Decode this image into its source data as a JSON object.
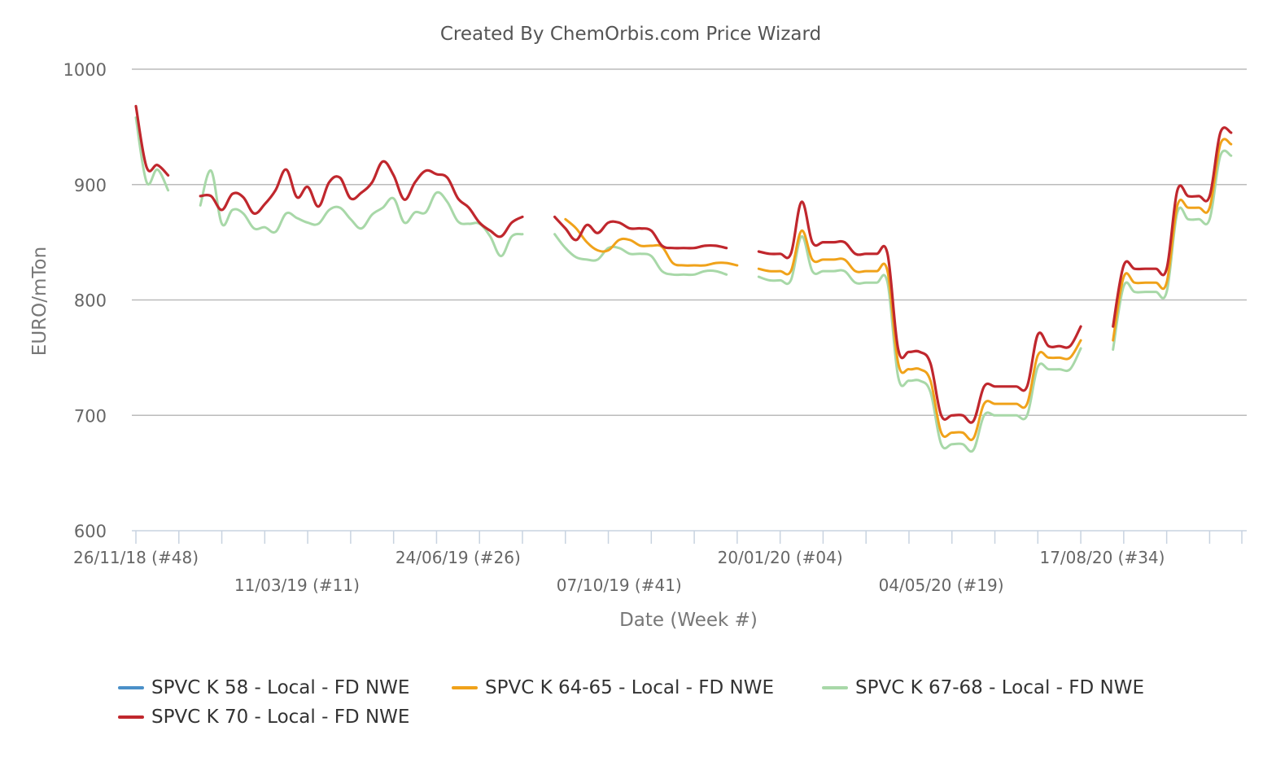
{
  "chart_data": {
    "type": "line",
    "title": "Created By ChemOrbis.com Price Wizard",
    "xlabel": "Date (Week #)",
    "ylabel": "EURO/mTon",
    "ylim": [
      600,
      1000
    ],
    "yticks": [
      600,
      700,
      800,
      900,
      1000
    ],
    "grid": true,
    "legend_position": "bottom",
    "xlim": [
      0,
      103
    ],
    "xtick_labels": [
      {
        "w": 0,
        "label": "26/11/18 (#48)"
      },
      {
        "w": 15,
        "label": "11/03/19 (#11)"
      },
      {
        "w": 30,
        "label": "24/06/19 (#26)"
      },
      {
        "w": 45,
        "label": "07/10/19 (#41)"
      },
      {
        "w": 60,
        "label": "20/01/20 (#04)"
      },
      {
        "w": 75,
        "label": "04/05/20 (#19)"
      },
      {
        "w": 90,
        "label": "17/08/20 (#34)"
      }
    ],
    "series": [
      {
        "name": "SPVC K 58 - Local - FD NWE",
        "color": "#4a90c8",
        "segments": []
      },
      {
        "name": "SPVC K 64-65 - Local - FD NWE",
        "color": "#f0a21a",
        "segments": [
          [
            [
              40,
              870
            ],
            [
              41,
              862
            ],
            [
              42,
              850
            ],
            [
              43,
              843
            ],
            [
              44,
              843
            ],
            [
              45,
              852
            ],
            [
              46,
              852
            ],
            [
              47,
              847
            ],
            [
              48,
              847
            ],
            [
              49,
              846
            ],
            [
              50,
              832
            ],
            [
              51,
              830
            ],
            [
              52,
              830
            ],
            [
              53,
              830
            ],
            [
              54,
              832
            ],
            [
              55,
              832
            ],
            [
              56,
              830
            ]
          ],
          [
            [
              58,
              827
            ],
            [
              59,
              825
            ],
            [
              60,
              825
            ],
            [
              61,
              825
            ],
            [
              62,
              860
            ],
            [
              63,
              835
            ],
            [
              64,
              835
            ],
            [
              65,
              835
            ],
            [
              66,
              835
            ],
            [
              67,
              825
            ],
            [
              68,
              825
            ],
            [
              69,
              825
            ],
            [
              70,
              825
            ],
            [
              71,
              745
            ],
            [
              72,
              740
            ],
            [
              73,
              740
            ],
            [
              74,
              730
            ],
            [
              75,
              685
            ],
            [
              76,
              685
            ],
            [
              77,
              685
            ],
            [
              78,
              680
            ],
            [
              79,
              710
            ],
            [
              80,
              710
            ],
            [
              81,
              710
            ],
            [
              82,
              710
            ],
            [
              83,
              710
            ],
            [
              84,
              752
            ],
            [
              85,
              750
            ],
            [
              86,
              750
            ],
            [
              87,
              750
            ],
            [
              88,
              765
            ]
          ],
          [
            [
              91,
              765
            ],
            [
              92,
              820
            ],
            [
              93,
              815
            ],
            [
              94,
              815
            ],
            [
              95,
              815
            ],
            [
              96,
              815
            ],
            [
              97,
              882
            ],
            [
              98,
              880
            ],
            [
              99,
              880
            ],
            [
              100,
              880
            ],
            [
              101,
              935
            ],
            [
              102,
              935
            ]
          ]
        ]
      },
      {
        "name": "SPVC K 67-68 - Local - FD NWE",
        "color": "#a8d8a8",
        "segments": [
          [
            [
              0,
              958
            ],
            [
              1,
              902
            ],
            [
              2,
              913
            ],
            [
              3,
              895
            ]
          ],
          [
            [
              6,
              882
            ],
            [
              7,
              912
            ],
            [
              8,
              866
            ],
            [
              9,
              878
            ],
            [
              10,
              875
            ],
            [
              11,
              862
            ],
            [
              12,
              863
            ],
            [
              13,
              859
            ],
            [
              14,
              875
            ],
            [
              15,
              871
            ],
            [
              16,
              867
            ],
            [
              17,
              866
            ],
            [
              18,
              878
            ],
            [
              19,
              880
            ],
            [
              20,
              870
            ],
            [
              21,
              862
            ],
            [
              22,
              874
            ],
            [
              23,
              880
            ],
            [
              24,
              888
            ],
            [
              25,
              867
            ],
            [
              26,
              876
            ],
            [
              27,
              876
            ],
            [
              28,
              893
            ],
            [
              29,
              885
            ],
            [
              30,
              868
            ],
            [
              31,
              866
            ],
            [
              32,
              866
            ],
            [
              33,
              855
            ],
            [
              34,
              838
            ],
            [
              35,
              855
            ],
            [
              36,
              857
            ]
          ],
          [
            [
              39,
              857
            ],
            [
              40,
              845
            ],
            [
              41,
              837
            ],
            [
              42,
              835
            ],
            [
              43,
              835
            ],
            [
              44,
              845
            ],
            [
              45,
              845
            ],
            [
              46,
              840
            ],
            [
              47,
              840
            ],
            [
              48,
              838
            ],
            [
              49,
              825
            ],
            [
              50,
              822
            ],
            [
              51,
              822
            ],
            [
              52,
              822
            ],
            [
              53,
              825
            ],
            [
              54,
              825
            ],
            [
              55,
              822
            ]
          ],
          [
            [
              58,
              820
            ],
            [
              59,
              817
            ],
            [
              60,
              817
            ],
            [
              61,
              817
            ],
            [
              62,
              855
            ],
            [
              63,
              825
            ],
            [
              64,
              825
            ],
            [
              65,
              825
            ],
            [
              66,
              825
            ],
            [
              67,
              815
            ],
            [
              68,
              815
            ],
            [
              69,
              815
            ],
            [
              70,
              815
            ],
            [
              71,
              733
            ],
            [
              72,
              730
            ],
            [
              73,
              730
            ],
            [
              74,
              720
            ],
            [
              75,
              675
            ],
            [
              76,
              675
            ],
            [
              77,
              675
            ],
            [
              78,
              670
            ],
            [
              79,
              700
            ],
            [
              80,
              700
            ],
            [
              81,
              700
            ],
            [
              82,
              700
            ],
            [
              83,
              700
            ],
            [
              84,
              742
            ],
            [
              85,
              740
            ],
            [
              86,
              740
            ],
            [
              87,
              740
            ],
            [
              88,
              758
            ]
          ],
          [
            [
              91,
              757
            ],
            [
              92,
              812
            ],
            [
              93,
              807
            ],
            [
              94,
              807
            ],
            [
              95,
              807
            ],
            [
              96,
              807
            ],
            [
              97,
              876
            ],
            [
              98,
              870
            ],
            [
              99,
              870
            ],
            [
              100,
              870
            ],
            [
              101,
              925
            ],
            [
              102,
              925
            ]
          ]
        ]
      },
      {
        "name": "SPVC K 70 - Local - FD NWE",
        "color": "#c0272d",
        "segments": [
          [
            [
              0,
              968
            ],
            [
              1,
              915
            ],
            [
              2,
              917
            ],
            [
              3,
              908
            ]
          ],
          [
            [
              6,
              890
            ],
            [
              7,
              890
            ],
            [
              8,
              878
            ],
            [
              9,
              892
            ],
            [
              10,
              889
            ],
            [
              11,
              875
            ],
            [
              12,
              883
            ],
            [
              13,
              895
            ],
            [
              14,
              913
            ],
            [
              15,
              889
            ],
            [
              16,
              898
            ],
            [
              17,
              881
            ],
            [
              18,
              902
            ],
            [
              19,
              906
            ],
            [
              20,
              888
            ],
            [
              21,
              893
            ],
            [
              22,
              902
            ],
            [
              23,
              920
            ],
            [
              24,
              908
            ],
            [
              25,
              887
            ],
            [
              26,
              902
            ],
            [
              27,
              912
            ],
            [
              28,
              909
            ],
            [
              29,
              906
            ],
            [
              30,
              888
            ],
            [
              31,
              880
            ],
            [
              32,
              867
            ],
            [
              33,
              860
            ],
            [
              34,
              855
            ],
            [
              35,
              867
            ],
            [
              36,
              872
            ]
          ],
          [
            [
              39,
              872
            ],
            [
              40,
              862
            ],
            [
              41,
              852
            ],
            [
              42,
              865
            ],
            [
              43,
              858
            ],
            [
              44,
              867
            ],
            [
              45,
              867
            ],
            [
              46,
              862
            ],
            [
              47,
              862
            ],
            [
              48,
              860
            ],
            [
              49,
              847
            ],
            [
              50,
              845
            ],
            [
              51,
              845
            ],
            [
              52,
              845
            ],
            [
              53,
              847
            ],
            [
              54,
              847
            ],
            [
              55,
              845
            ]
          ],
          [
            [
              58,
              842
            ],
            [
              59,
              840
            ],
            [
              60,
              840
            ],
            [
              61,
              840
            ],
            [
              62,
              885
            ],
            [
              63,
              850
            ],
            [
              64,
              850
            ],
            [
              65,
              850
            ],
            [
              66,
              850
            ],
            [
              67,
              840
            ],
            [
              68,
              840
            ],
            [
              69,
              840
            ],
            [
              70,
              840
            ],
            [
              71,
              757
            ],
            [
              72,
              755
            ],
            [
              73,
              755
            ],
            [
              74,
              745
            ],
            [
              75,
              700
            ],
            [
              76,
              700
            ],
            [
              77,
              700
            ],
            [
              78,
              695
            ],
            [
              79,
              725
            ],
            [
              80,
              725
            ],
            [
              81,
              725
            ],
            [
              82,
              725
            ],
            [
              83,
              725
            ],
            [
              84,
              770
            ],
            [
              85,
              760
            ],
            [
              86,
              760
            ],
            [
              87,
              760
            ],
            [
              88,
              777
            ]
          ],
          [
            [
              91,
              777
            ],
            [
              92,
              830
            ],
            [
              93,
              827
            ],
            [
              94,
              827
            ],
            [
              95,
              827
            ],
            [
              96,
              827
            ],
            [
              97,
              895
            ],
            [
              98,
              890
            ],
            [
              99,
              890
            ],
            [
              100,
              890
            ],
            [
              101,
              945
            ],
            [
              102,
              945
            ]
          ]
        ]
      }
    ]
  }
}
